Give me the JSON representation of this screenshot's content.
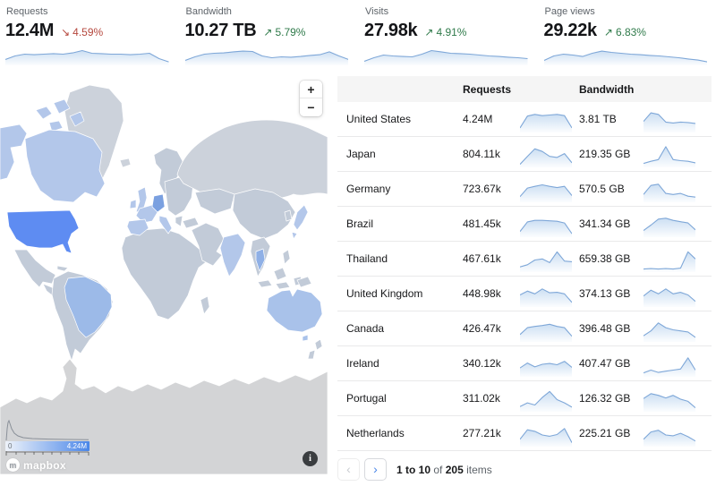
{
  "kpi_cards": [
    {
      "label": "Requests",
      "value": "12.4M",
      "arrow": "↘",
      "change": "4.59%",
      "direction": "down",
      "trend": [
        0.25,
        0.45,
        0.55,
        0.52,
        0.55,
        0.58,
        0.55,
        0.62,
        0.75,
        0.6,
        0.58,
        0.55,
        0.55,
        0.52,
        0.55,
        0.6,
        0.3,
        0.12
      ]
    },
    {
      "label": "Bandwidth",
      "value": "10.27 TB",
      "arrow": "↗",
      "change": "5.79%",
      "direction": "up",
      "trend": [
        0.2,
        0.4,
        0.55,
        0.6,
        0.62,
        0.68,
        0.72,
        0.7,
        0.45,
        0.35,
        0.4,
        0.38,
        0.42,
        0.48,
        0.52,
        0.68,
        0.45,
        0.25
      ]
    },
    {
      "label": "Visits",
      "value": "27.98k",
      "arrow": "↗",
      "change": "4.91%",
      "direction": "up",
      "trend": [
        0.15,
        0.35,
        0.5,
        0.45,
        0.42,
        0.4,
        0.55,
        0.75,
        0.68,
        0.6,
        0.58,
        0.55,
        0.5,
        0.45,
        0.42,
        0.38,
        0.35,
        0.3
      ]
    },
    {
      "label": "Page views",
      "value": "29.22k",
      "arrow": "↗",
      "change": "6.83%",
      "direction": "up",
      "trend": [
        0.2,
        0.45,
        0.55,
        0.5,
        0.42,
        0.6,
        0.72,
        0.65,
        0.6,
        0.55,
        0.52,
        0.48,
        0.45,
        0.4,
        0.35,
        0.28,
        0.22,
        0.12
      ]
    }
  ],
  "map": {
    "zoom_in_label": "+",
    "zoom_out_label": "−",
    "legend_min": "0",
    "legend_max": "4.24M",
    "attribution": "mapbox",
    "attribution_mark": "m",
    "info_label": "i"
  },
  "table": {
    "columns": {
      "requests": "Requests",
      "bandwidth": "Bandwidth"
    },
    "rows": [
      {
        "country": "United States",
        "requests": "4.24M",
        "bandwidth": "3.81 TB",
        "requests_trend": [
          0.15,
          0.7,
          0.78,
          0.72,
          0.75,
          0.78,
          0.72,
          0.15
        ],
        "bandwidth_trend": [
          0.45,
          0.85,
          0.78,
          0.42,
          0.38,
          0.42,
          0.4,
          0.36
        ]
      },
      {
        "country": "Japan",
        "requests": "804.11k",
        "bandwidth": "219.35 GB",
        "requests_trend": [
          0.08,
          0.45,
          0.8,
          0.68,
          0.45,
          0.4,
          0.58,
          0.15
        ],
        "bandwidth_trend": [
          0.12,
          0.22,
          0.3,
          0.9,
          0.3,
          0.25,
          0.22,
          0.15
        ]
      },
      {
        "country": "Germany",
        "requests": "723.67k",
        "bandwidth": "570.5 GB",
        "requests_trend": [
          0.2,
          0.6,
          0.68,
          0.75,
          0.68,
          0.62,
          0.68,
          0.25
        ],
        "bandwidth_trend": [
          0.3,
          0.72,
          0.78,
          0.35,
          0.3,
          0.35,
          0.22,
          0.18
        ]
      },
      {
        "country": "Brazil",
        "requests": "481.45k",
        "bandwidth": "341.34 GB",
        "requests_trend": [
          0.2,
          0.65,
          0.72,
          0.72,
          0.7,
          0.68,
          0.6,
          0.1
        ],
        "bandwidth_trend": [
          0.25,
          0.5,
          0.78,
          0.82,
          0.72,
          0.66,
          0.6,
          0.28
        ]
      },
      {
        "country": "Thailand",
        "requests": "467.61k",
        "bandwidth": "659.38 GB",
        "requests_trend": [
          0.18,
          0.28,
          0.5,
          0.55,
          0.38,
          0.88,
          0.45,
          0.42
        ],
        "bandwidth_trend": [
          0.08,
          0.1,
          0.08,
          0.1,
          0.08,
          0.12,
          0.88,
          0.55
        ]
      },
      {
        "country": "United Kingdom",
        "requests": "448.98k",
        "bandwidth": "374.13 GB",
        "requests_trend": [
          0.5,
          0.68,
          0.55,
          0.78,
          0.6,
          0.62,
          0.55,
          0.15
        ],
        "bandwidth_trend": [
          0.45,
          0.72,
          0.55,
          0.78,
          0.55,
          0.62,
          0.5,
          0.2
        ]
      },
      {
        "country": "Canada",
        "requests": "426.47k",
        "bandwidth": "396.48 GB",
        "requests_trend": [
          0.28,
          0.6,
          0.66,
          0.7,
          0.76,
          0.66,
          0.6,
          0.2
        ],
        "bandwidth_trend": [
          0.22,
          0.45,
          0.82,
          0.6,
          0.5,
          0.45,
          0.4,
          0.15
        ]
      },
      {
        "country": "Ireland",
        "requests": "340.12k",
        "bandwidth": "407.47 GB",
        "requests_trend": [
          0.35,
          0.58,
          0.4,
          0.52,
          0.56,
          0.5,
          0.66,
          0.38
        ],
        "bandwidth_trend": [
          0.12,
          0.25,
          0.14,
          0.2,
          0.25,
          0.3,
          0.82,
          0.25
        ]
      },
      {
        "country": "Portugal",
        "requests": "311.02k",
        "bandwidth": "126.32 GB",
        "requests_trend": [
          0.18,
          0.35,
          0.25,
          0.6,
          0.88,
          0.5,
          0.35,
          0.15
        ],
        "bandwidth_trend": [
          0.55,
          0.78,
          0.7,
          0.58,
          0.7,
          0.52,
          0.42,
          0.12
        ]
      },
      {
        "country": "Netherlands",
        "requests": "277.21k",
        "bandwidth": "225.21 GB",
        "requests_trend": [
          0.28,
          0.72,
          0.65,
          0.48,
          0.42,
          0.5,
          0.78,
          0.12
        ],
        "bandwidth_trend": [
          0.28,
          0.62,
          0.7,
          0.48,
          0.44,
          0.56,
          0.4,
          0.2
        ]
      }
    ]
  },
  "pagination": {
    "prev_icon": "‹",
    "next_icon": "›",
    "range": "1 to 10",
    "of_text": "of",
    "total": "205",
    "items_text": "items"
  },
  "colors": {
    "accent_blue": "#4a86e8",
    "positive_green": "#2f7a4a",
    "negative_red": "#b5473d",
    "spark_stroke": "#7ea7d8",
    "spark_fill": "#c9ddf2",
    "map_land": "#ccd2db",
    "map_land_tint": "#c2cbd8",
    "map_low": "#b3c7ea",
    "map_mid": "#9cbae8",
    "map_germany": "#7aa0e0",
    "map_thailand": "#8fb0e6",
    "map_australia": "#a9c2ea",
    "map_high": "#5e8cf2",
    "map_antarctica": "#d3d4d6",
    "header_bg": "#f5f5f5",
    "row_border": "#e9e9ea",
    "text_dark": "#1f2023",
    "text_gray": "#5d6369"
  }
}
